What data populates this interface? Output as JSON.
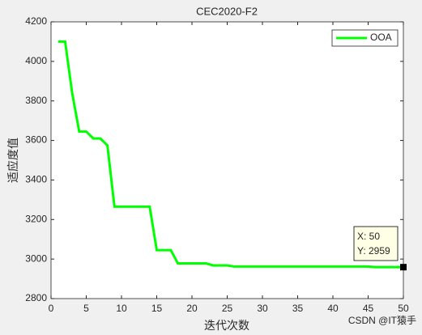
{
  "chart_data": {
    "type": "line",
    "title": "CEC2020-F2",
    "xlabel": "迭代次数",
    "ylabel": "适应度值",
    "x": [
      1,
      2,
      3,
      4,
      5,
      6,
      7,
      8,
      9,
      10,
      11,
      12,
      13,
      14,
      15,
      16,
      17,
      18,
      19,
      20,
      21,
      22,
      23,
      24,
      25,
      26,
      27,
      28,
      29,
      30,
      31,
      32,
      33,
      34,
      35,
      36,
      37,
      38,
      39,
      40,
      41,
      42,
      43,
      44,
      45,
      46,
      47,
      48,
      49,
      50
    ],
    "series": [
      {
        "name": "OOA",
        "color": "#00ff00",
        "values": [
          4100,
          4100,
          3840,
          3645,
          3645,
          3610,
          3610,
          3575,
          3265,
          3265,
          3265,
          3265,
          3265,
          3265,
          3045,
          3045,
          3045,
          2978,
          2978,
          2978,
          2978,
          2978,
          2968,
          2968,
          2968,
          2962,
          2962,
          2962,
          2962,
          2962,
          2962,
          2962,
          2962,
          2962,
          2962,
          2962,
          2962,
          2962,
          2962,
          2962,
          2962,
          2962,
          2962,
          2962,
          2962,
          2959,
          2959,
          2959,
          2959,
          2959
        ]
      }
    ],
    "xlim": [
      0,
      50
    ],
    "xticks": [
      0,
      5,
      10,
      15,
      20,
      25,
      30,
      35,
      40,
      45,
      50
    ],
    "ylim": [
      2800,
      4200
    ],
    "yticks": [
      2800,
      3000,
      3200,
      3400,
      3600,
      3800,
      4000,
      4200
    ],
    "grid": false,
    "legend_position": "top-right",
    "datatip": [
      "X: 50",
      "Y: 2959"
    ],
    "watermark": "CSDN @IT猿手"
  }
}
